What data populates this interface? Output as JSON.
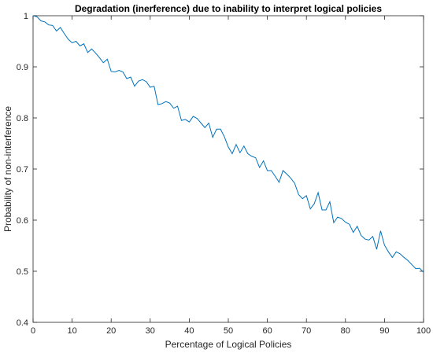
{
  "chart_data": {
    "type": "line",
    "title": "Degradation (inerference) due to inability to interpret logical policies",
    "xlabel": "Percentage of Logical Policies",
    "ylabel": "Probability of non-interference",
    "xlim": [
      0,
      100
    ],
    "ylim": [
      0.4,
      1
    ],
    "xticks": [
      0,
      10,
      20,
      30,
      40,
      50,
      60,
      70,
      80,
      90,
      100
    ],
    "yticks": [
      0.4,
      0.5,
      0.6,
      0.7,
      0.8,
      0.9,
      1
    ],
    "xtick_labels": [
      "0",
      "10",
      "20",
      "30",
      "40",
      "50",
      "60",
      "70",
      "80",
      "90",
      "100"
    ],
    "ytick_labels": [
      "0.4",
      "0.5",
      "0.6",
      "0.7",
      "0.8",
      "0.9",
      "1"
    ],
    "grid": false,
    "line_color": "#0072BD",
    "series": [
      {
        "x": [
          0,
          1,
          2,
          3,
          4,
          5,
          6,
          7,
          8,
          9,
          10,
          11,
          12,
          13,
          14,
          15,
          16,
          17,
          18,
          19,
          20,
          21,
          22,
          23,
          24,
          25,
          26,
          27,
          28,
          29,
          30,
          31,
          32,
          33,
          34,
          35,
          36,
          37,
          38,
          39,
          40,
          41,
          42,
          43,
          44,
          45,
          46,
          47,
          48,
          49,
          50,
          51,
          52,
          53,
          54,
          55,
          56,
          57,
          58,
          59,
          60,
          61,
          62,
          63,
          64,
          65,
          66,
          67,
          68,
          69,
          70,
          71,
          72,
          73,
          74,
          75,
          76,
          77,
          78,
          79,
          80,
          81,
          82,
          83,
          84,
          85,
          86,
          87,
          88,
          89,
          90,
          91,
          92,
          93,
          94,
          95,
          96,
          97,
          98,
          99,
          100
        ],
        "values": [
          1.0,
          0.998,
          0.99,
          0.988,
          0.982,
          0.981,
          0.97,
          0.977,
          0.965,
          0.954,
          0.947,
          0.95,
          0.941,
          0.945,
          0.928,
          0.935,
          0.927,
          0.918,
          0.908,
          0.915,
          0.891,
          0.89,
          0.893,
          0.89,
          0.877,
          0.88,
          0.862,
          0.872,
          0.875,
          0.871,
          0.86,
          0.862,
          0.826,
          0.828,
          0.832,
          0.829,
          0.819,
          0.823,
          0.795,
          0.797,
          0.792,
          0.803,
          0.799,
          0.79,
          0.781,
          0.79,
          0.762,
          0.778,
          0.778,
          0.763,
          0.743,
          0.73,
          0.748,
          0.732,
          0.745,
          0.73,
          0.725,
          0.722,
          0.703,
          0.716,
          0.697,
          0.697,
          0.686,
          0.674,
          0.697,
          0.69,
          0.682,
          0.672,
          0.65,
          0.642,
          0.648,
          0.622,
          0.632,
          0.654,
          0.62,
          0.62,
          0.636,
          0.595,
          0.606,
          0.603,
          0.596,
          0.592,
          0.576,
          0.588,
          0.57,
          0.563,
          0.561,
          0.568,
          0.543,
          0.579,
          0.551,
          0.538,
          0.527,
          0.538,
          0.534,
          0.527,
          0.521,
          0.513,
          0.505,
          0.506,
          0.498
        ]
      }
    ]
  }
}
